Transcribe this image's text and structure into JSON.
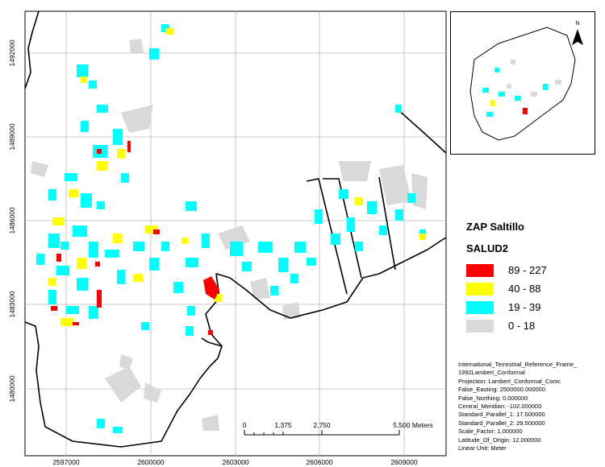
{
  "legend": {
    "title": "ZAP Saltillo",
    "subtitle": "SALUD2",
    "classes": [
      {
        "label": "89 - 227",
        "color": "#ff0000"
      },
      {
        "label": "40 - 88",
        "color": "#ffff00"
      },
      {
        "label": "19 - 39",
        "color": "#00ffff"
      },
      {
        "label": "0 - 18",
        "color": "#d9d9d9"
      }
    ]
  },
  "axes": {
    "x_ticks": [
      "2597000",
      "2600000",
      "2603000",
      "2606000",
      "2609000"
    ],
    "y_ticks": [
      "1492000",
      "1489000",
      "1486000",
      "1483000",
      "1480000"
    ]
  },
  "scalebar": {
    "labels": [
      "0",
      "1,375",
      "2,750",
      "5,500 Meters"
    ]
  },
  "north_arrow": {
    "label": "N"
  },
  "projection": [
    "International_Terrestrial_Reference_Frame_",
    "1992Lambert_Conformal",
    "Projection: Lambert_Conformal_Conic",
    "False_Easting: 2500000.000000",
    "False_Northing: 0.000000",
    "Central_Meridian: -102.000000",
    "Standard_Parallel_1: 17.500000",
    "Standard_Parallel_2: 29.500000",
    "Scale_Factor: 1.000000",
    "Latitude_Of_Origin: 12.000000",
    "Linear Unit: Meter"
  ]
}
